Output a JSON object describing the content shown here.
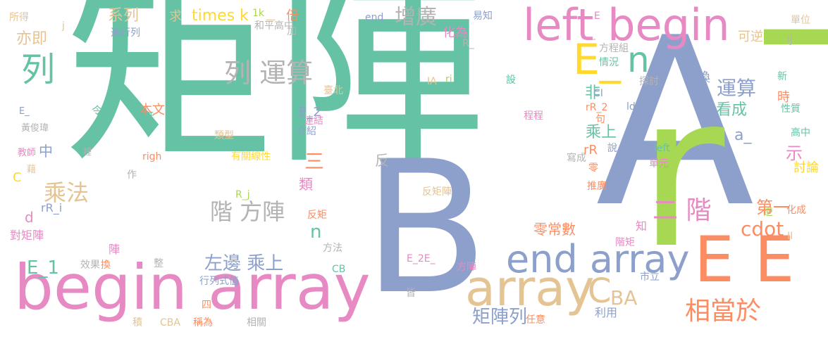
{
  "palette": {
    "green": "#66c2a5",
    "orange": "#fc8d62",
    "blue": "#8da0cb",
    "pink": "#e78ac3",
    "lime": "#a6d854",
    "yellow": "#ffd92f",
    "tan": "#e5c494",
    "gray": "#b3b3b3"
  },
  "words": [
    {
      "text": "矩陣",
      "color": "#66c2a5"
    },
    {
      "text": "A",
      "color": "#8da0cb"
    },
    {
      "text": "r",
      "color": "#a6d854"
    },
    {
      "text": "I",
      "color": "#a6d854"
    },
    {
      "text": "B",
      "color": "#8da0cb"
    },
    {
      "text": "begin",
      "color": "#e78ac3"
    },
    {
      "text": "array",
      "color": "#e78ac3"
    },
    {
      "text": "array",
      "color": "#e5c494"
    },
    {
      "text": "left begin",
      "color": "#e78ac3"
    },
    {
      "text": "E E",
      "color": "#fc8d62"
    },
    {
      "text": "end array",
      "color": "#8da0cb"
    },
    {
      "text": "E_",
      "color": "#ffd92f"
    },
    {
      "text": "n",
      "color": "#66c2a5"
    },
    {
      "text": "列",
      "color": "#66c2a5"
    },
    {
      "text": "列 運算",
      "color": "#b3b3b3"
    },
    {
      "text": "C",
      "color": "#e5c494"
    },
    {
      "text": "BA",
      "color": "#e5c494"
    },
    {
      "text": "相當於",
      "color": "#fc8d62"
    },
    {
      "text": "階 方陣",
      "color": "#b3b3b3"
    },
    {
      "text": "二 階",
      "color": "#e78ac3"
    },
    {
      "text": "乘法",
      "color": "#e5c494"
    },
    {
      "text": "左邊 乘上",
      "color": "#8da0cb"
    },
    {
      "text": "增廣",
      "color": "#b3b3b3"
    },
    {
      "text": "運算",
      "color": "#8da0cb"
    },
    {
      "text": "看成",
      "color": "#66c2a5"
    },
    {
      "text": "乘上",
      "color": "#66c2a5"
    },
    {
      "text": "cdot",
      "color": "#fc8d62"
    },
    {
      "text": "矩陣列",
      "color": "#8da0cb"
    },
    {
      "text": "times k",
      "color": "#ffd92f"
    },
    {
      "text": "系列",
      "color": "#e5c494"
    },
    {
      "text": "三",
      "color": "#fc8d62"
    },
    {
      "text": "類",
      "color": "#e78ac3"
    },
    {
      "text": "第一",
      "color": "#fc8d62"
    },
    {
      "text": "示",
      "color": "#e78ac3"
    },
    {
      "text": "a_",
      "color": "#8da0cb"
    },
    {
      "text": "非",
      "color": "#66c2a5"
    },
    {
      "text": "E_1",
      "color": "#66c2a5"
    },
    {
      "text": "d",
      "color": "#e78ac3"
    },
    {
      "text": "中",
      "color": "#8da0cb"
    },
    {
      "text": "亦即",
      "color": "#e5c494"
    },
    {
      "text": "n",
      "color": "#66c2a5"
    },
    {
      "text": "零常數",
      "color": "#fc8d62"
    },
    {
      "text": "互換",
      "color": "#8da0cb"
    },
    {
      "text": "可逆",
      "color": "#e5c494"
    },
    {
      "text": "時",
      "color": "#fc8d62"
    },
    {
      "text": "本文",
      "color": "#fc8d62"
    },
    {
      "text": "對矩陣",
      "color": "#e78ac3"
    },
    {
      "text": "rR_i",
      "color": "#8da0cb"
    },
    {
      "text": "化為",
      "color": "#e78ac3"
    },
    {
      "text": "倍",
      "color": "#fc8d62"
    },
    {
      "text": "求",
      "color": "#e5c494"
    },
    {
      "text": "E_2",
      "color": "#8da0cb"
    },
    {
      "text": "令",
      "color": "#66c2a5"
    },
    {
      "text": "反",
      "color": "#b3b3b3"
    },
    {
      "text": "陣",
      "color": "#e78ac3"
    },
    {
      "text": "rR",
      "color": "#fc8d62"
    },
    {
      "text": "利用",
      "color": "#8da0cb"
    },
    {
      "text": "化成",
      "color": "#fc8d62"
    },
    {
      "text": "知",
      "color": "#e78ac3"
    },
    {
      "text": "C",
      "color": "#ffd92f"
    },
    {
      "text": "所得",
      "color": "#e5c494"
    },
    {
      "text": "j",
      "color": "#e5c494"
    },
    {
      "text": "進行列",
      "color": "#8da0cb"
    },
    {
      "text": "end",
      "color": "#8da0cb"
    },
    {
      "text": "易知",
      "color": "#8da0cb"
    },
    {
      "text": "E",
      "color": "#e78ac3"
    },
    {
      "text": "單位",
      "color": "#e5c494"
    },
    {
      "text": "ij",
      "color": "#b3b3b3"
    },
    {
      "text": "新",
      "color": "#66c2a5"
    },
    {
      "text": "性質",
      "color": "#66c2a5"
    },
    {
      "text": "高中",
      "color": "#66c2a5"
    },
    {
      "text": "討論",
      "color": "#ffd92f"
    },
    {
      "text": "E_",
      "color": "#8da0cb"
    },
    {
      "text": "黃俊瑋",
      "color": "#b3b3b3"
    },
    {
      "text": "教師",
      "color": "#e78ac3"
    },
    {
      "text": "藉",
      "color": "#e5c494"
    },
    {
      "text": "話",
      "color": "#66c2a5"
    },
    {
      "text": "裡",
      "color": "#b3b3b3"
    },
    {
      "text": "righ",
      "color": "#fc8d62"
    },
    {
      "text": "作",
      "color": "#b3b3b3"
    },
    {
      "text": "類型",
      "color": "#e5c494"
    },
    {
      "text": "有關線性",
      "color": "#ffd92f"
    },
    {
      "text": "介紹",
      "color": "#8da0cb"
    },
    {
      "text": "連結",
      "color": "#e78ac3"
    },
    {
      "text": "臺北",
      "color": "#e5c494"
    },
    {
      "text": "R_",
      "color": "#b3b3b3"
    },
    {
      "text": "IA",
      "color": "#e5c494"
    },
    {
      "text": "ri",
      "color": "#a6d854"
    },
    {
      "text": "設",
      "color": "#66c2a5"
    },
    {
      "text": "方程組",
      "color": "#b3b3b3"
    },
    {
      "text": "情況",
      "color": "#66c2a5"
    },
    {
      "text": "探討",
      "color": "#b3b3b3"
    },
    {
      "text": "CI",
      "color": "#8da0cb"
    },
    {
      "text": "ldots",
      "color": "#8da0cb"
    },
    {
      "text": "rR_2",
      "color": "#fc8d62"
    },
    {
      "text": "句",
      "color": "#fc8d62"
    },
    {
      "text": "程程",
      "color": "#e78ac3"
    },
    {
      "text": "說",
      "color": "#8da0cb"
    },
    {
      "text": "left",
      "color": "#66c2a5"
    },
    {
      "text": "寫成",
      "color": "#b3b3b3"
    },
    {
      "text": "零",
      "color": "#fc8d62"
    },
    {
      "text": "單元",
      "color": "#e78ac3"
    },
    {
      "text": "推廣",
      "color": "#fc8d62"
    },
    {
      "text": "R_j",
      "color": "#a6d854"
    },
    {
      "text": "反矩陣",
      "color": "#e5c494"
    },
    {
      "text": "反矩",
      "color": "#fc8d62"
    },
    {
      "text": "方法",
      "color": "#b3b3b3"
    },
    {
      "text": "CB",
      "color": "#66c2a5"
    },
    {
      "text": "E_2E_",
      "color": "#e78ac3"
    },
    {
      "text": "皆",
      "color": "#b3b3b3"
    },
    {
      "text": "方陣",
      "color": "#e78ac3"
    },
    {
      "text": "任意",
      "color": "#fc8d62"
    },
    {
      "text": "階矩",
      "color": "#e78ac3"
    },
    {
      "text": "市立",
      "color": "#8da0cb"
    },
    {
      "text": "II",
      "color": "#e5c494"
    },
    {
      "text": "逆",
      "color": "#a6d854"
    },
    {
      "text": "整",
      "color": "#b3b3b3"
    },
    {
      "text": "行列式值",
      "color": "#8da0cb"
    },
    {
      "text": "效果",
      "color": "#b3b3b3"
    },
    {
      "text": "換",
      "color": "#fc8d62"
    },
    {
      "text": "四",
      "color": "#fc8d62"
    },
    {
      "text": "積",
      "color": "#e5c494"
    },
    {
      "text": "CBA",
      "color": "#e5c494"
    },
    {
      "text": "稱為",
      "color": "#fc8d62"
    },
    {
      "text": "相關",
      "color": "#b3b3b3"
    },
    {
      "text": "和平高中",
      "color": "#b3b3b3"
    },
    {
      "text": "一",
      "color": "#e5c494"
    },
    {
      "text": "加",
      "color": "#b3b3b3"
    },
    {
      "text": "1k",
      "color": "#a6d854"
    },
    {
      "text": "_",
      "color": "#b3b3b3"
    },
    {
      "text": "E",
      "color": "#ffd92f"
    }
  ]
}
